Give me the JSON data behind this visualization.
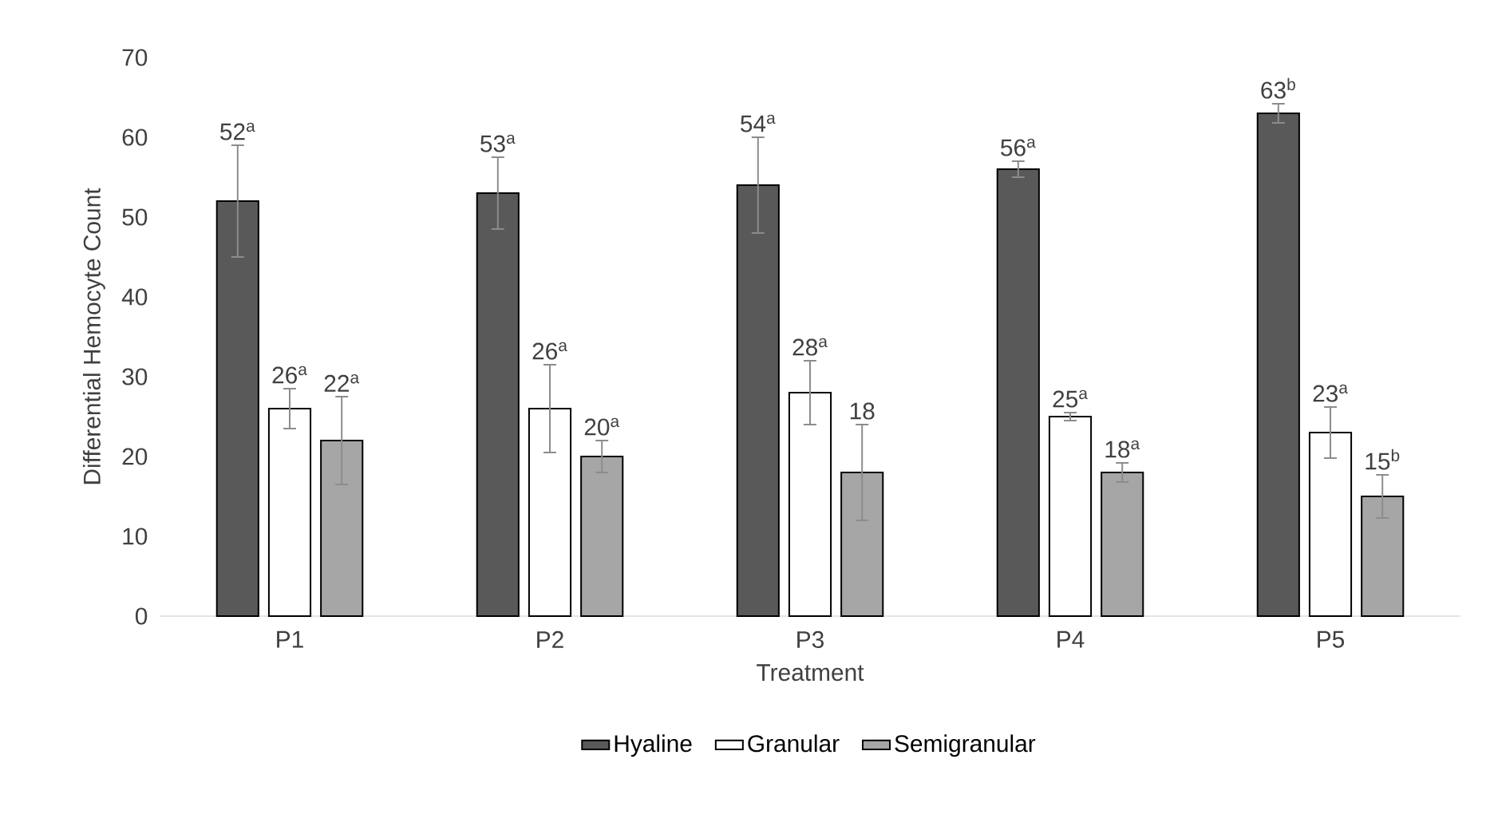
{
  "chart_data": {
    "type": "bar",
    "xlabel": "Treatment",
    "ylabel": "Differential Hemocyte Count",
    "categories": [
      "P1",
      "P2",
      "P3",
      "P4",
      "P5"
    ],
    "series": [
      {
        "name": "Hyaline",
        "color": "#595959",
        "values": [
          52,
          53,
          54,
          56,
          63
        ],
        "errors": [
          7,
          4.5,
          6,
          1,
          1.2
        ],
        "value_labels": [
          "52$^{a}$",
          "53$^{a}$",
          "54$^{a}$",
          "56$^{a}$",
          "63$^{b}$"
        ]
      },
      {
        "name": "Granular",
        "color": "#ffffff",
        "values": [
          26,
          26,
          28,
          25,
          23
        ],
        "errors": [
          2.5,
          5.5,
          4,
          0.5,
          3.2
        ],
        "value_labels": [
          "26$^{a}$",
          "26$^{a}$",
          "28$^{a}$",
          "25$^{a}$",
          "23$^{a}$"
        ]
      },
      {
        "name": "Semigranular",
        "color": "#a6a6a6",
        "values": [
          22,
          20,
          18,
          18,
          15
        ],
        "errors": [
          5.5,
          2,
          6,
          1.2,
          2.7
        ],
        "value_labels": [
          "22$^{a}$",
          "20$^{a}$",
          "18",
          "18$^{a}$",
          "15$^{b}$"
        ]
      }
    ],
    "ylim": [
      0,
      70
    ],
    "yticks": [
      0,
      10,
      20,
      30,
      40,
      50,
      60,
      70
    ],
    "grid": false,
    "legend": "bottom"
  }
}
